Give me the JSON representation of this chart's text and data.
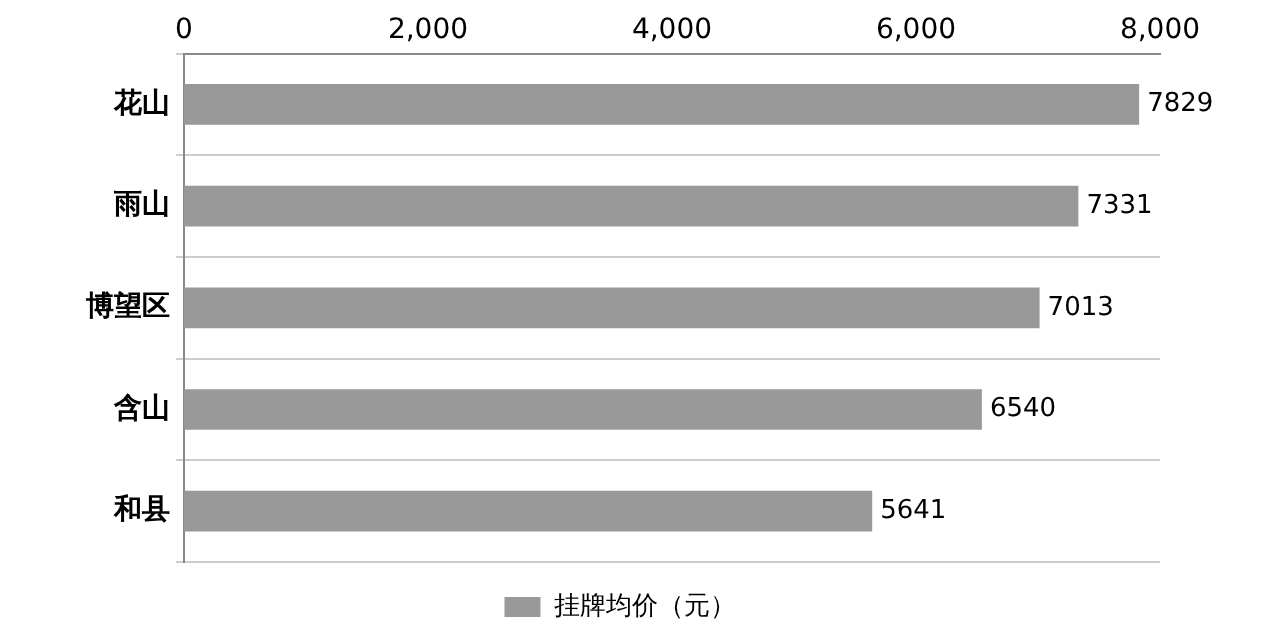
{
  "chart_data": {
    "type": "bar",
    "orientation": "horizontal",
    "categories": [
      "花山",
      "雨山",
      "博望区",
      "含山",
      "和县"
    ],
    "series": [
      {
        "name": "挂牌均价（元）",
        "color": "#999999",
        "values": [
          7829,
          7331,
          7013,
          6540,
          5641
        ]
      }
    ],
    "xlim": [
      0,
      8000
    ],
    "xticks": [
      {
        "value": 0,
        "label": "0"
      },
      {
        "value": 2000,
        "label": "2,000"
      },
      {
        "value": 4000,
        "label": "4,000"
      },
      {
        "value": 6000,
        "label": "6,000"
      },
      {
        "value": 8000,
        "label": "8,000"
      }
    ],
    "grid": "y",
    "legend": "bottom",
    "data_labels": true
  }
}
